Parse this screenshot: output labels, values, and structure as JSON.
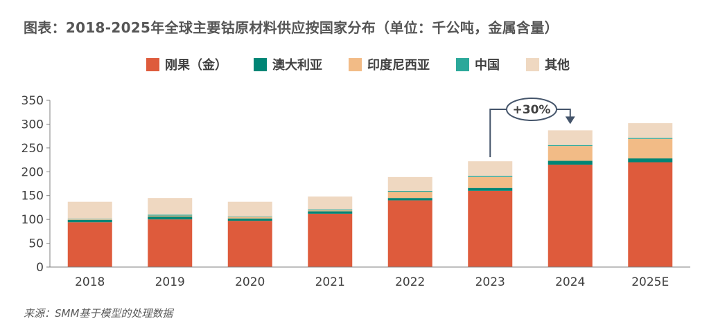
{
  "title": "图表：2018-2025年全球主要钴原材料供应按国家分布（单位：千公吨，金属含量）",
  "source": "来源：SMM基于模型的处理数据",
  "chart_data": {
    "type": "bar",
    "stacked": true,
    "categories": [
      "2018",
      "2019",
      "2020",
      "2021",
      "2022",
      "2023",
      "2024",
      "2025E"
    ],
    "series": [
      {
        "name": "刚果（金）",
        "color": "#DE5B3C",
        "values": [
          94,
          100,
          97,
          112,
          140,
          160,
          215,
          220
        ]
      },
      {
        "name": "澳大利亚",
        "color": "#008575",
        "values": [
          5,
          6,
          5,
          5,
          5,
          6,
          8,
          8
        ]
      },
      {
        "name": "印度尼西亚",
        "color": "#F2BB86",
        "values": [
          1,
          2,
          3,
          2,
          13,
          23,
          31,
          41
        ]
      },
      {
        "name": "中国",
        "color": "#2BA89A",
        "values": [
          1,
          2,
          1,
          2,
          2,
          2,
          2,
          2
        ]
      },
      {
        "name": "其他",
        "color": "#EFD8C1",
        "values": [
          36,
          35,
          31,
          27,
          29,
          31,
          31,
          31
        ]
      }
    ],
    "ylim": [
      0,
      350
    ],
    "yticks": [
      0,
      50,
      100,
      150,
      200,
      250,
      300,
      350
    ],
    "legend_position": "top-right",
    "annotation": {
      "text": "+30%",
      "from": "2023",
      "to": "2024"
    }
  }
}
